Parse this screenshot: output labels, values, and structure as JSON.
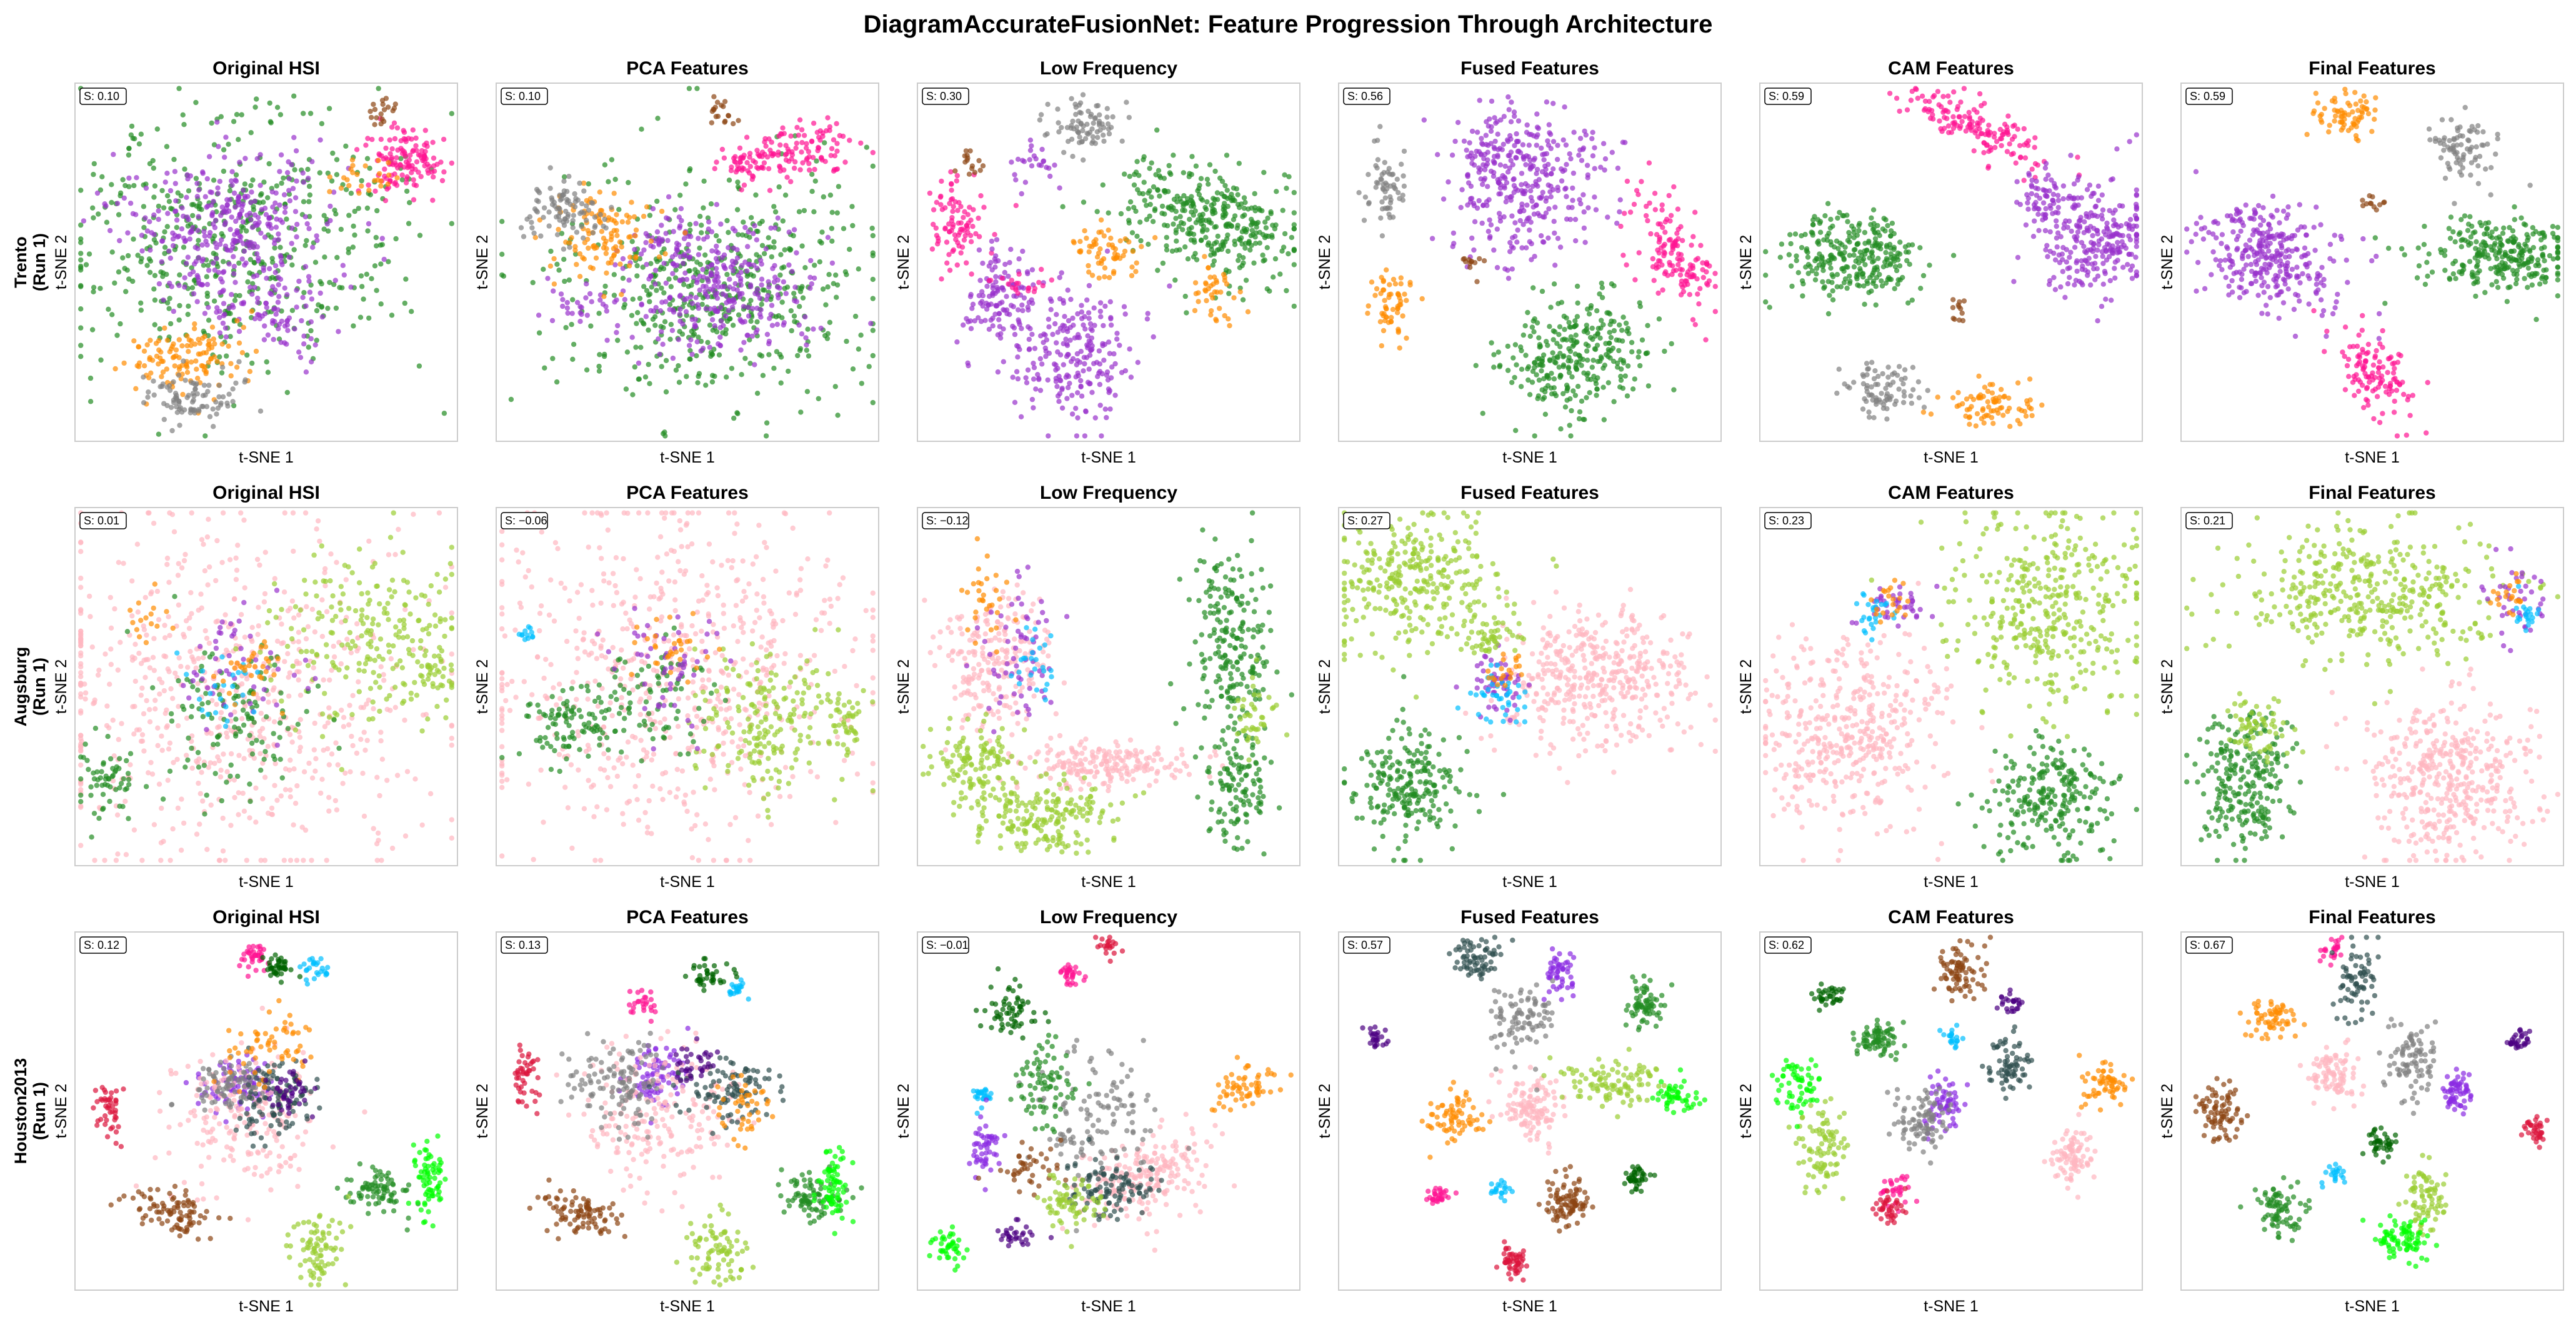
{
  "figure": {
    "title": "DiagramAccurateFusionNet: Feature Progression Through Architecture"
  },
  "chart_data": {
    "type": "scatter",
    "title": "DiagramAccurateFusionNet: Feature Progression Through Architecture",
    "xlabel": "t-SNE 1",
    "ylabel": "t-SNE 2",
    "columns": [
      "Original HSI",
      "PCA Features",
      "Low Frequency",
      "Fused Features",
      "CAM Features",
      "Final Features"
    ],
    "rows": [
      {
        "dataset": "Trento",
        "run": "(Run 1)",
        "first_ylabel": "t-SNE 2",
        "panels": [
          {
            "title": "Original HSI",
            "silhouette": "S: 0.10",
            "x": [
              -1,
              1
            ],
            "y": [
              -1,
              1
            ]
          },
          {
            "title": "PCA Features",
            "silhouette": "S: 0.10",
            "x": [
              -1,
              1
            ],
            "y": [
              -1,
              1
            ]
          },
          {
            "title": "Low Frequency",
            "silhouette": "S: 0.30",
            "x": [
              -1,
              1
            ],
            "y": [
              -1,
              1
            ]
          },
          {
            "title": "Fused Features",
            "silhouette": "S: 0.56",
            "x": [
              -1,
              1
            ],
            "y": [
              -1,
              1
            ]
          },
          {
            "title": "CAM Features",
            "silhouette": "S: 0.59",
            "x": [
              -1,
              1
            ],
            "y": [
              -1,
              1
            ]
          },
          {
            "title": "Final Features",
            "silhouette": "S: 0.59",
            "x": [
              -1,
              1
            ],
            "y": [
              -1,
              1
            ]
          }
        ]
      },
      {
        "dataset": "Augsburg",
        "run": "(Run 1)",
        "first_ylabel": "t-SNE 2",
        "panels": [
          {
            "title": "Original HSI",
            "silhouette": "S: 0.01"
          },
          {
            "title": "PCA Features",
            "silhouette": "S: −0.06"
          },
          {
            "title": "Low Frequency",
            "silhouette": "S: −0.12"
          },
          {
            "title": "Fused Features",
            "silhouette": "S: 0.27"
          },
          {
            "title": "CAM Features",
            "silhouette": "S: 0.23"
          },
          {
            "title": "Final Features",
            "silhouette": "S: 0.21"
          }
        ]
      },
      {
        "dataset": "Houston2013",
        "run": "(Run 1)",
        "first_ylabel": "t-SNE 2",
        "panels": [
          {
            "title": "Original HSI",
            "silhouette": "S: 0.12"
          },
          {
            "title": "PCA Features",
            "silhouette": "S: 0.13"
          },
          {
            "title": "Low Frequency",
            "silhouette": "S: −0.01"
          },
          {
            "title": "Fused Features",
            "silhouette": "S: 0.57"
          },
          {
            "title": "CAM Features",
            "silhouette": "S: 0.62"
          },
          {
            "title": "Final Features",
            "silhouette": "S: 0.67"
          }
        ]
      }
    ],
    "class_colors": {
      "Trento": [
        "#ff8c00",
        "#8b4513",
        "#ff1493",
        "#228b22",
        "#9932cc",
        "#808080"
      ],
      "Augsburg": [
        "#9acd32",
        "#ffb6c1",
        "#228b22",
        "#9932cc",
        "#00bfff",
        "#ff8c00",
        "#808080"
      ],
      "Houston2013": [
        "#ff1493",
        "#006400",
        "#00bfff",
        "#8a2be2",
        "#ffb6c1",
        "#808080",
        "#2f4f4f",
        "#ff8c00",
        "#dc143c",
        "#8b4513",
        "#228b22",
        "#9acd32",
        "#00ff00",
        "#4b0082"
      ]
    },
    "point_alpha": 0.7,
    "grid": false,
    "ticks": false
  }
}
